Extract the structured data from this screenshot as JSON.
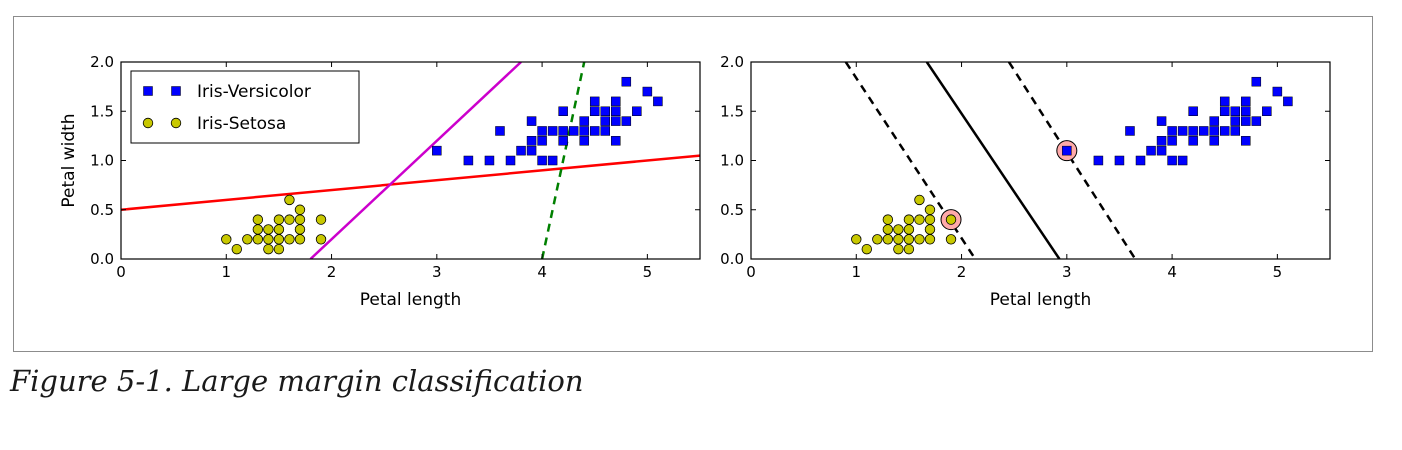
{
  "caption": "Figure 5-1. Large margin classification",
  "chart_data": [
    {
      "type": "scatter",
      "xlabel": "Petal length",
      "ylabel": "Petal width",
      "xlim": [
        0,
        5.5
      ],
      "ylim": [
        0,
        2.0
      ],
      "xticks": [
        "0",
        "1",
        "2",
        "3",
        "4",
        "5"
      ],
      "yticks": [
        "0.0",
        "0.5",
        "1.0",
        "1.5",
        "2.0"
      ],
      "legend": {
        "placement": "top-left",
        "entries": [
          "Iris-Versicolor",
          "Iris-Setosa"
        ]
      },
      "series": [
        {
          "name": "Iris-Versicolor",
          "marker": "square",
          "color": "#0000ff",
          "points": [
            [
              3.0,
              1.1
            ],
            [
              3.3,
              1.0
            ],
            [
              3.5,
              1.0
            ],
            [
              3.6,
              1.3
            ],
            [
              3.7,
              1.0
            ],
            [
              3.8,
              1.1
            ],
            [
              3.9,
              1.1
            ],
            [
              3.9,
              1.2
            ],
            [
              3.9,
              1.4
            ],
            [
              4.0,
              1.0
            ],
            [
              4.0,
              1.2
            ],
            [
              4.0,
              1.3
            ],
            [
              4.1,
              1.0
            ],
            [
              4.1,
              1.3
            ],
            [
              4.2,
              1.2
            ],
            [
              4.2,
              1.3
            ],
            [
              4.2,
              1.5
            ],
            [
              4.3,
              1.3
            ],
            [
              4.4,
              1.2
            ],
            [
              4.4,
              1.3
            ],
            [
              4.4,
              1.4
            ],
            [
              4.5,
              1.3
            ],
            [
              4.5,
              1.5
            ],
            [
              4.5,
              1.6
            ],
            [
              4.6,
              1.3
            ],
            [
              4.6,
              1.4
            ],
            [
              4.6,
              1.5
            ],
            [
              4.7,
              1.2
            ],
            [
              4.7,
              1.4
            ],
            [
              4.7,
              1.5
            ],
            [
              4.7,
              1.6
            ],
            [
              4.8,
              1.4
            ],
            [
              4.8,
              1.8
            ],
            [
              4.9,
              1.5
            ],
            [
              5.0,
              1.7
            ],
            [
              5.1,
              1.6
            ]
          ]
        },
        {
          "name": "Iris-Setosa",
          "marker": "circle",
          "color": "#c8c800",
          "points": [
            [
              1.0,
              0.2
            ],
            [
              1.1,
              0.1
            ],
            [
              1.2,
              0.2
            ],
            [
              1.3,
              0.2
            ],
            [
              1.3,
              0.3
            ],
            [
              1.3,
              0.4
            ],
            [
              1.4,
              0.1
            ],
            [
              1.4,
              0.2
            ],
            [
              1.4,
              0.3
            ],
            [
              1.5,
              0.1
            ],
            [
              1.5,
              0.2
            ],
            [
              1.5,
              0.3
            ],
            [
              1.5,
              0.4
            ],
            [
              1.6,
              0.2
            ],
            [
              1.6,
              0.4
            ],
            [
              1.6,
              0.6
            ],
            [
              1.7,
              0.2
            ],
            [
              1.7,
              0.3
            ],
            [
              1.7,
              0.4
            ],
            [
              1.7,
              0.5
            ],
            [
              1.9,
              0.2
            ],
            [
              1.9,
              0.4
            ]
          ]
        }
      ],
      "lines": [
        {
          "color": "#ff0000",
          "style": "solid",
          "points": [
            [
              0,
              0.5
            ],
            [
              5.5,
              1.05
            ]
          ]
        },
        {
          "color": "#cc00cc",
          "style": "solid",
          "points": [
            [
              1.8,
              0
            ],
            [
              3.8,
              2.0
            ]
          ]
        },
        {
          "color": "#008000",
          "style": "dashed",
          "points": [
            [
              4.0,
              0
            ],
            [
              4.4,
              2.0
            ]
          ]
        }
      ],
      "highlighted_points": []
    },
    {
      "type": "scatter",
      "xlabel": "Petal length",
      "ylabel": "",
      "xlim": [
        0,
        5.5
      ],
      "ylim": [
        0,
        2.0
      ],
      "xticks": [
        "0",
        "1",
        "2",
        "3",
        "4",
        "5"
      ],
      "yticks": [
        "0.0",
        "0.5",
        "1.0",
        "1.5",
        "2.0"
      ],
      "series": [
        {
          "marker": "square",
          "color": "#0000ff",
          "points": [
            [
              3.0,
              1.1
            ],
            [
              3.3,
              1.0
            ],
            [
              3.5,
              1.0
            ],
            [
              3.6,
              1.3
            ],
            [
              3.7,
              1.0
            ],
            [
              3.8,
              1.1
            ],
            [
              3.9,
              1.1
            ],
            [
              3.9,
              1.2
            ],
            [
              3.9,
              1.4
            ],
            [
              4.0,
              1.0
            ],
            [
              4.0,
              1.2
            ],
            [
              4.0,
              1.3
            ],
            [
              4.1,
              1.0
            ],
            [
              4.1,
              1.3
            ],
            [
              4.2,
              1.2
            ],
            [
              4.2,
              1.3
            ],
            [
              4.2,
              1.5
            ],
            [
              4.3,
              1.3
            ],
            [
              4.4,
              1.2
            ],
            [
              4.4,
              1.3
            ],
            [
              4.4,
              1.4
            ],
            [
              4.5,
              1.3
            ],
            [
              4.5,
              1.5
            ],
            [
              4.5,
              1.6
            ],
            [
              4.6,
              1.3
            ],
            [
              4.6,
              1.4
            ],
            [
              4.6,
              1.5
            ],
            [
              4.7,
              1.2
            ],
            [
              4.7,
              1.4
            ],
            [
              4.7,
              1.5
            ],
            [
              4.7,
              1.6
            ],
            [
              4.8,
              1.4
            ],
            [
              4.8,
              1.8
            ],
            [
              4.9,
              1.5
            ],
            [
              5.0,
              1.7
            ],
            [
              5.1,
              1.6
            ]
          ]
        },
        {
          "marker": "circle",
          "color": "#c8c800",
          "points": [
            [
              1.0,
              0.2
            ],
            [
              1.1,
              0.1
            ],
            [
              1.2,
              0.2
            ],
            [
              1.3,
              0.2
            ],
            [
              1.3,
              0.3
            ],
            [
              1.3,
              0.4
            ],
            [
              1.4,
              0.1
            ],
            [
              1.4,
              0.2
            ],
            [
              1.4,
              0.3
            ],
            [
              1.5,
              0.1
            ],
            [
              1.5,
              0.2
            ],
            [
              1.5,
              0.3
            ],
            [
              1.5,
              0.4
            ],
            [
              1.6,
              0.2
            ],
            [
              1.6,
              0.4
            ],
            [
              1.6,
              0.6
            ],
            [
              1.7,
              0.2
            ],
            [
              1.7,
              0.3
            ],
            [
              1.7,
              0.4
            ],
            [
              1.7,
              0.5
            ],
            [
              1.9,
              0.2
            ],
            [
              1.9,
              0.4
            ]
          ]
        }
      ],
      "lines": [
        {
          "color": "#000000",
          "style": "solid",
          "points": [
            [
              1.67,
              2.0
            ],
            [
              2.93,
              0
            ]
          ]
        },
        {
          "color": "#000000",
          "style": "dashed",
          "points": [
            [
              0.9,
              2.0
            ],
            [
              2.13,
              0
            ]
          ]
        },
        {
          "color": "#000000",
          "style": "dashed",
          "points": [
            [
              2.45,
              2.0
            ],
            [
              3.65,
              0
            ]
          ]
        }
      ],
      "highlighted_points": [
        [
          1.9,
          0.4
        ],
        [
          3.0,
          1.1
        ]
      ],
      "highlight_color": "#ffaaaa"
    }
  ]
}
